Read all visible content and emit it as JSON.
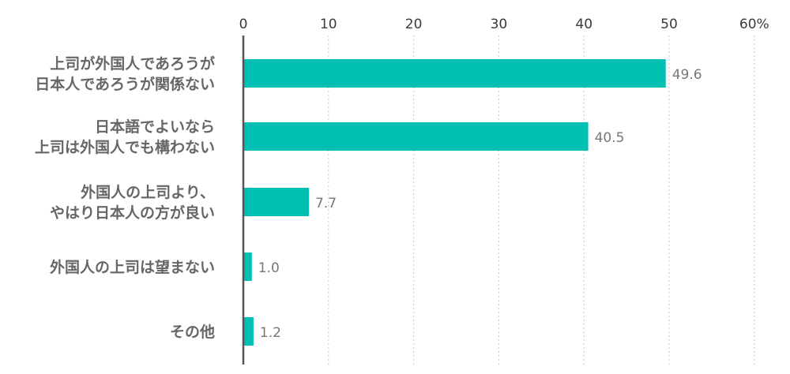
{
  "chart_data": {
    "type": "bar",
    "orientation": "horizontal",
    "categories": [
      [
        "上司が外国人であろうが",
        "日本人であろうが関係ない"
      ],
      [
        "日本語でよいなら",
        "上司は外国人でも構わない"
      ],
      [
        "外国人の上司より、",
        "やはり日本人の方が良い"
      ],
      [
        "外国人の上司は望まない"
      ],
      [
        "その他"
      ]
    ],
    "values": [
      49.6,
      40.5,
      7.7,
      1.0,
      1.2
    ],
    "value_labels": [
      "49.6",
      "40.5",
      "7.7",
      "1.0",
      "1.2"
    ],
    "ticks": [
      0,
      10,
      20,
      30,
      40,
      50,
      60
    ],
    "tick_labels": [
      "0",
      "10",
      "20",
      "30",
      "40",
      "50",
      "60%"
    ],
    "xlim": [
      0,
      60
    ],
    "grid": true,
    "title": "",
    "xlabel": "",
    "ylabel": "",
    "colors": {
      "bar": "#00bfb3",
      "grid": "#c8c8c8",
      "axis": "#555555"
    }
  }
}
